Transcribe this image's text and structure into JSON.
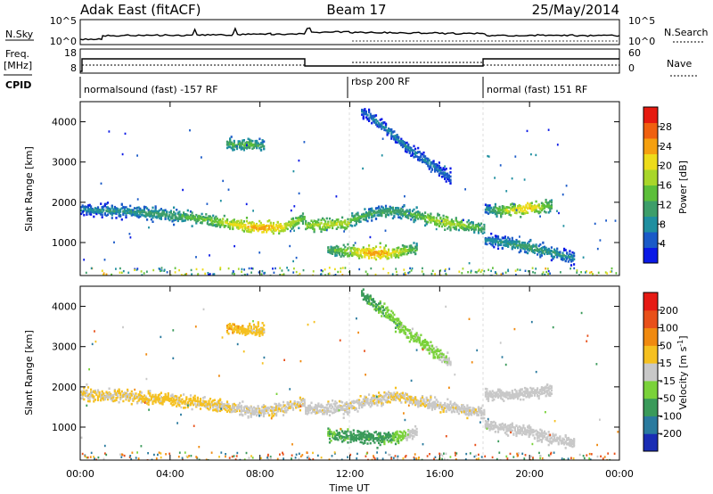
{
  "header": {
    "station": "Adak East (fitACF)",
    "beam": "Beam 17",
    "date": "25/May/2014"
  },
  "top_panels": {
    "nsky_label": "N.Sky",
    "nsky_ticks": [
      "10^5",
      "10^0"
    ],
    "nsearch_label": "N.Search",
    "nsearch_ticks": [
      "10^5",
      "10^0"
    ],
    "freq_label_1": "Freq.",
    "freq_label_2": "[MHz]",
    "freq_ticks": [
      "18",
      "8"
    ],
    "nave_label": "Nave",
    "nave_ticks": [
      "60",
      "0"
    ],
    "cpid_label": "CPID",
    "cpid_segments": [
      {
        "label": "normalsound (fast) -157 RF",
        "start_hour": 0,
        "end_hour": 12
      },
      {
        "label": "rbsp 200 RF",
        "start_hour": 12,
        "end_hour": 18
      },
      {
        "label": "normal (fast) 151 RF",
        "start_hour": 18,
        "end_hour": 24
      }
    ]
  },
  "chart_data": [
    {
      "type": "heatmap",
      "ylabel": "Slant Range [km]",
      "xlabel": "Time UT",
      "xlim": [
        0,
        24
      ],
      "ylim": [
        180,
        4500
      ],
      "x_ticks": [
        "00:00",
        "04:00",
        "08:00",
        "12:00",
        "16:00",
        "20:00",
        "00:00"
      ],
      "y_ticks": [
        "1000",
        "2000",
        "3000",
        "4000"
      ],
      "colorbar": {
        "label": "Power [dB]",
        "ticks": [
          "4",
          "8",
          "12",
          "16",
          "20",
          "24",
          "28"
        ],
        "colors": [
          "#0a19e6",
          "#1a5ac8",
          "#1f8fa0",
          "#3d9e6a",
          "#5cbf3a",
          "#a8d62a",
          "#eddc1a",
          "#f5a010",
          "#f06010",
          "#e61a10"
        ]
      },
      "bands": [
        {
          "x": [
            0,
            1,
            2,
            3,
            4,
            5,
            6,
            7,
            8,
            9,
            10
          ],
          "y": [
            1850,
            1820,
            1800,
            1760,
            1700,
            1640,
            1560,
            1460,
            1380,
            1420,
            1650
          ],
          "power": [
            8,
            9,
            10,
            11,
            12,
            14,
            16,
            20,
            24,
            20,
            14
          ]
        },
        {
          "x": [
            10,
            11,
            12
          ],
          "y": [
            1450,
            1470,
            1520
          ],
          "power": [
            16,
            18,
            18
          ]
        },
        {
          "x": [
            12,
            13,
            14,
            15,
            16,
            17,
            18
          ],
          "y": [
            1580,
            1750,
            1800,
            1700,
            1550,
            1450,
            1380
          ],
          "power": [
            14,
            12,
            12,
            14,
            18,
            16,
            12
          ]
        },
        {
          "x": [
            11,
            12,
            13,
            14,
            15
          ],
          "y": [
            850,
            800,
            760,
            780,
            860
          ],
          "power": [
            12,
            18,
            24,
            20,
            12
          ]
        },
        {
          "x": [
            18,
            19,
            20,
            21
          ],
          "y": [
            1850,
            1820,
            1880,
            1950
          ],
          "power": [
            8,
            18,
            22,
            12
          ]
        },
        {
          "x": [
            18,
            19,
            20,
            21,
            22
          ],
          "y": [
            1100,
            1000,
            900,
            780,
            620
          ],
          "power": [
            8,
            10,
            12,
            10,
            8
          ]
        },
        {
          "x": [
            12.5,
            13.5,
            14.5,
            15.5,
            16.5
          ],
          "y": [
            4300,
            3900,
            3400,
            3000,
            2600
          ],
          "power": [
            6,
            8,
            8,
            8,
            6
          ]
        },
        {
          "x": [
            6.5,
            7.5,
            8.2
          ],
          "y": [
            3480,
            3450,
            3420
          ],
          "power": [
            12,
            14,
            10
          ]
        }
      ]
    },
    {
      "type": "heatmap",
      "ylabel": "Slant Range [km]",
      "xlabel": "Time UT",
      "xlim": [
        0,
        24
      ],
      "ylim": [
        180,
        4500
      ],
      "x_ticks": [
        "00:00",
        "04:00",
        "08:00",
        "12:00",
        "16:00",
        "20:00",
        "00:00"
      ],
      "y_ticks": [
        "1000",
        "2000",
        "3000",
        "4000"
      ],
      "colorbar": {
        "label": "Velocity [m s^-1]",
        "ticks": [
          "200",
          "100",
          "50",
          "15",
          "-15",
          "-50",
          "-100",
          "-200"
        ],
        "colors": [
          "#1a2db4",
          "#2a7a9e",
          "#3a9a5a",
          "#7ad23a",
          "#c8c8c8",
          "#f5c020",
          "#f08a10",
          "#e8501a",
          "#e61a14"
        ]
      },
      "bands": [
        {
          "x": [
            0,
            2,
            4,
            6,
            8,
            10
          ],
          "y": [
            1850,
            1800,
            1700,
            1560,
            1400,
            1650
          ],
          "velocity": [
            -15,
            -15,
            -20,
            -15,
            -10,
            -15
          ]
        },
        {
          "x": [
            10,
            12
          ],
          "y": [
            1450,
            1520
          ],
          "velocity": [
            -10,
            -10
          ]
        },
        {
          "x": [
            12,
            14,
            16,
            18
          ],
          "y": [
            1580,
            1800,
            1550,
            1380
          ],
          "velocity": [
            -10,
            -15,
            -10,
            -10
          ]
        },
        {
          "x": [
            11,
            12,
            13,
            14,
            15
          ],
          "y": [
            850,
            800,
            760,
            780,
            860
          ],
          "velocity": [
            30,
            40,
            40,
            30,
            0
          ]
        },
        {
          "x": [
            18,
            19,
            20,
            21
          ],
          "y": [
            1850,
            1820,
            1880,
            1950
          ],
          "velocity": [
            0,
            0,
            0,
            0
          ]
        },
        {
          "x": [
            18,
            20,
            22
          ],
          "y": [
            1100,
            900,
            620
          ],
          "velocity": [
            0,
            0,
            0
          ]
        },
        {
          "x": [
            12.5,
            13.5,
            14.5,
            15.5,
            16.5
          ],
          "y": [
            4300,
            3900,
            3400,
            3000,
            2600
          ],
          "velocity": [
            40,
            30,
            20,
            20,
            10
          ]
        },
        {
          "x": [
            6.5,
            7.5,
            8.2
          ],
          "y": [
            3480,
            3450,
            3420
          ],
          "velocity": [
            -30,
            -20,
            -20
          ]
        }
      ]
    }
  ]
}
